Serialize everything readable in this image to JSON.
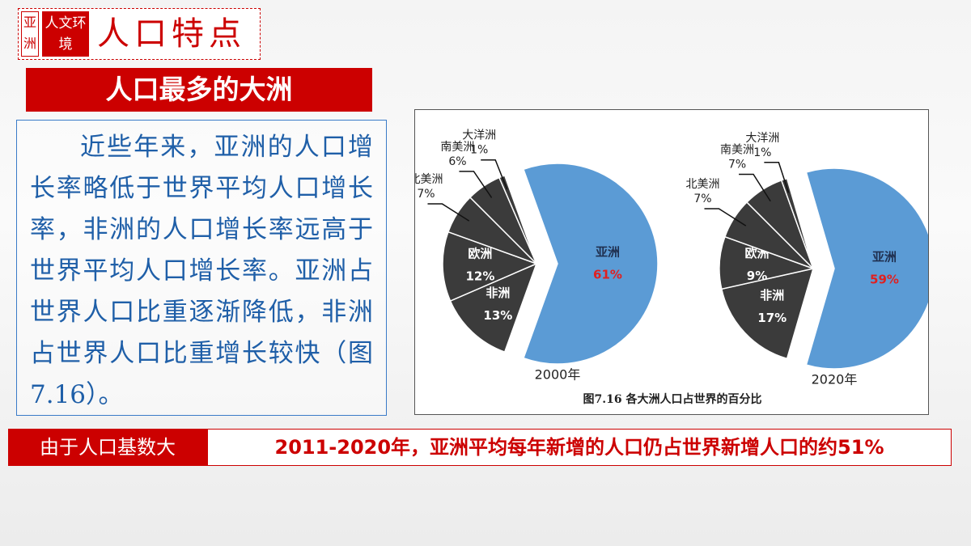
{
  "header": {
    "region": "亚洲",
    "section": "人文环境",
    "topic": "人口特点"
  },
  "title": "人口最多的大洲",
  "paragraph": "近些年来，亚洲的人口增长率略低于世界平均人口增长率，非洲的人口增长率远高于世界平均人口增长率。亚洲占世界人口比重逐渐降低，非洲占世界人口比重增长较快（图7.16）。",
  "figure_caption": "图7.16 各大洲人口占世界的百分比",
  "chart_data": [
    {
      "type": "pie",
      "label": "2000年",
      "categories": [
        "亚洲",
        "非洲",
        "欧洲",
        "北美洲",
        "南美洲",
        "大洋洲"
      ],
      "values": [
        61,
        13,
        12,
        7,
        6,
        1
      ],
      "value_labels": [
        "61%",
        "13%",
        "12%",
        "7%",
        "6%",
        "1%"
      ],
      "colors": [
        "#5b9bd5",
        "#3b3b3b",
        "#3b3b3b",
        "#3b3b3b",
        "#3b3b3b",
        "#3b3b3b"
      ]
    },
    {
      "type": "pie",
      "label": "2020年",
      "categories": [
        "亚洲",
        "非洲",
        "欧洲",
        "北美洲",
        "南美洲",
        "大洋洲"
      ],
      "values": [
        59,
        17,
        9,
        7,
        7,
        1
      ],
      "value_labels": [
        "59%",
        "17%",
        "9%",
        "7%",
        "7%",
        "1%"
      ],
      "colors": [
        "#5b9bd5",
        "#3b3b3b",
        "#3b3b3b",
        "#3b3b3b",
        "#3b3b3b",
        "#3b3b3b"
      ]
    }
  ],
  "bottom": {
    "reason": "由于人口基数大",
    "fact": "2011-2020年，亚洲平均每年新增的人口仍占世界新增人口的约51%"
  }
}
